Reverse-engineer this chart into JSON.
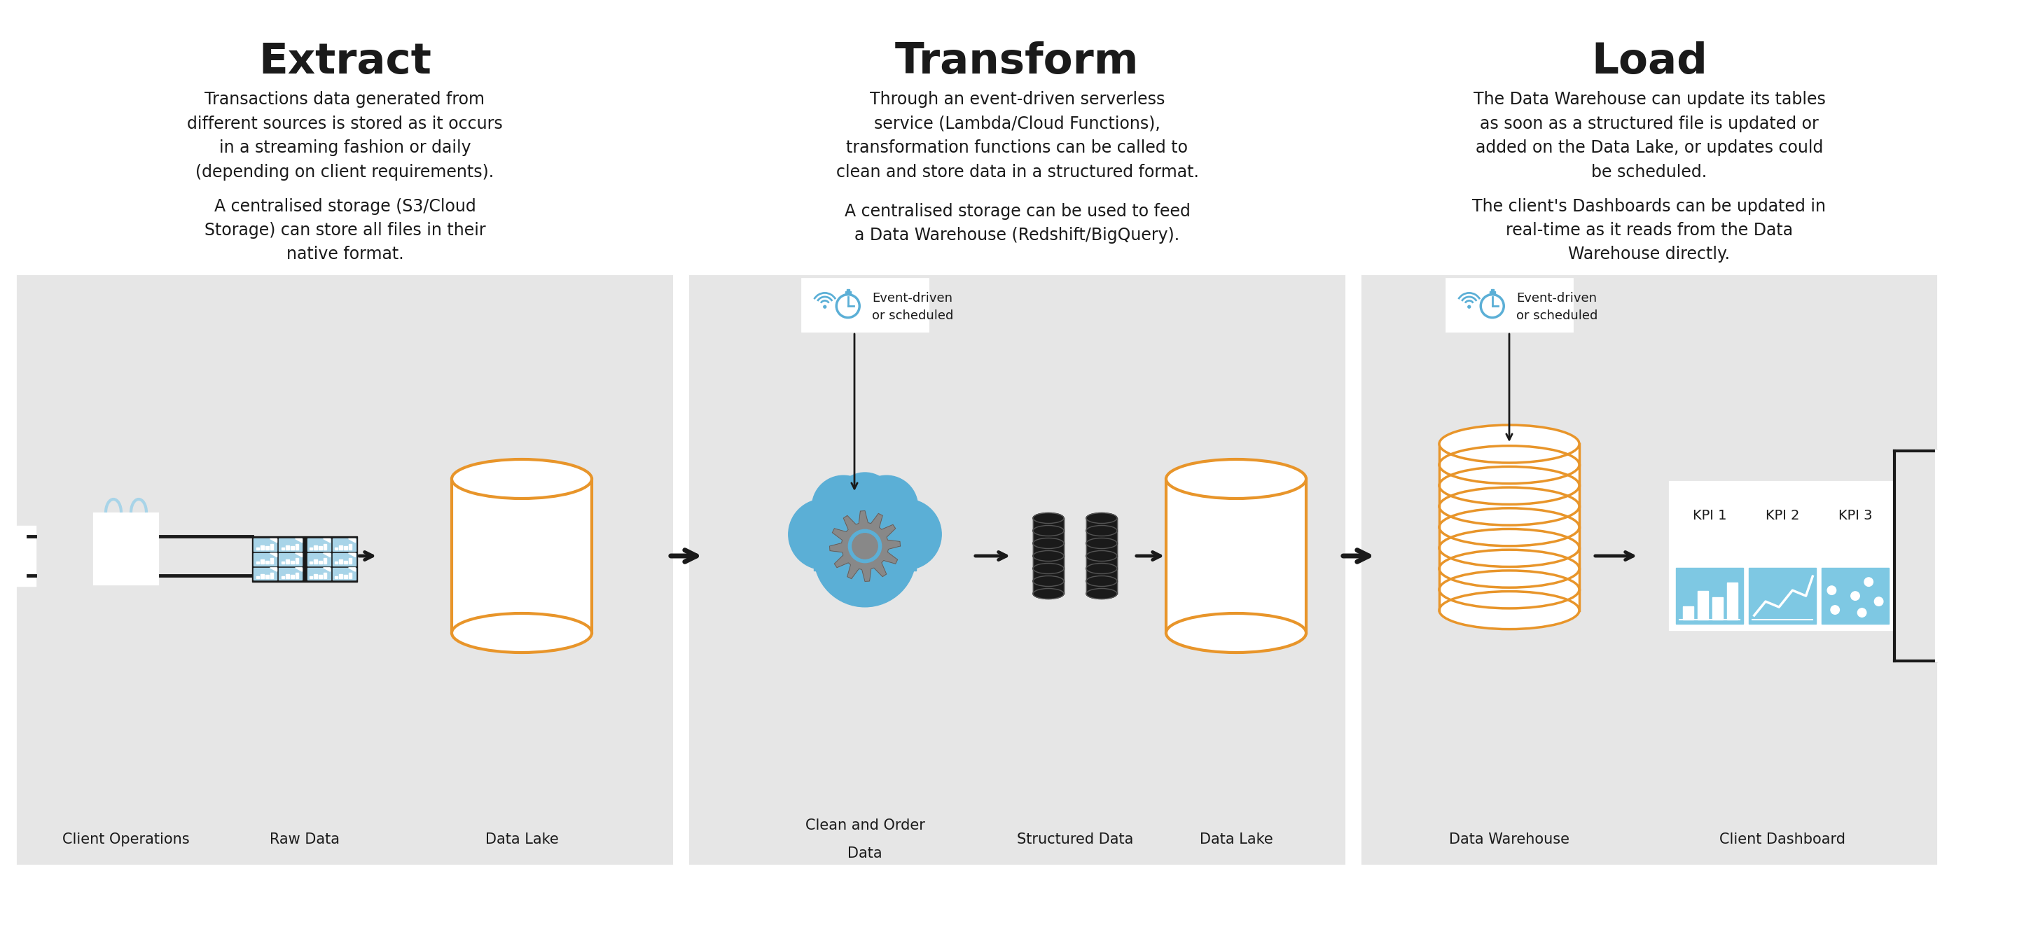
{
  "bg_color": "#ffffff",
  "panel_color": "#e6e6e6",
  "section_titles": [
    "Extract",
    "Transform",
    "Load"
  ],
  "extract_para1": "Transactions data generated from\ndifferent sources is stored as it occurs\nin a streaming fashion or daily\n(depending on client requirements).",
  "extract_para2": "A centralised storage (S3/Cloud\nStorage) can store all files in their\nnative format.",
  "transform_para1": "Through an event-driven serverless\nservice (Lambda/Cloud Functions),\ntransformation functions can be called to\nclean and store data in a structured format.",
  "transform_para2": "A centralised storage can be used to feed\na Data Warehouse (Redshift/BigQuery).",
  "load_para1": "The Data Warehouse can update its tables\nas soon as a structured file is updated or\nadded on the Data Lake, or updates could\nbe scheduled.",
  "load_para2": "The client's Dashboards can be updated in\nreal-time as it reads from the Data\nWarehouse directly.",
  "blue_color": "#5bafd6",
  "orange_color": "#e8952a",
  "dark_color": "#1a1a1a",
  "light_blue": "#a8d4e8",
  "gear_gray": "#888888",
  "kpi_blue": "#7ec8e3"
}
